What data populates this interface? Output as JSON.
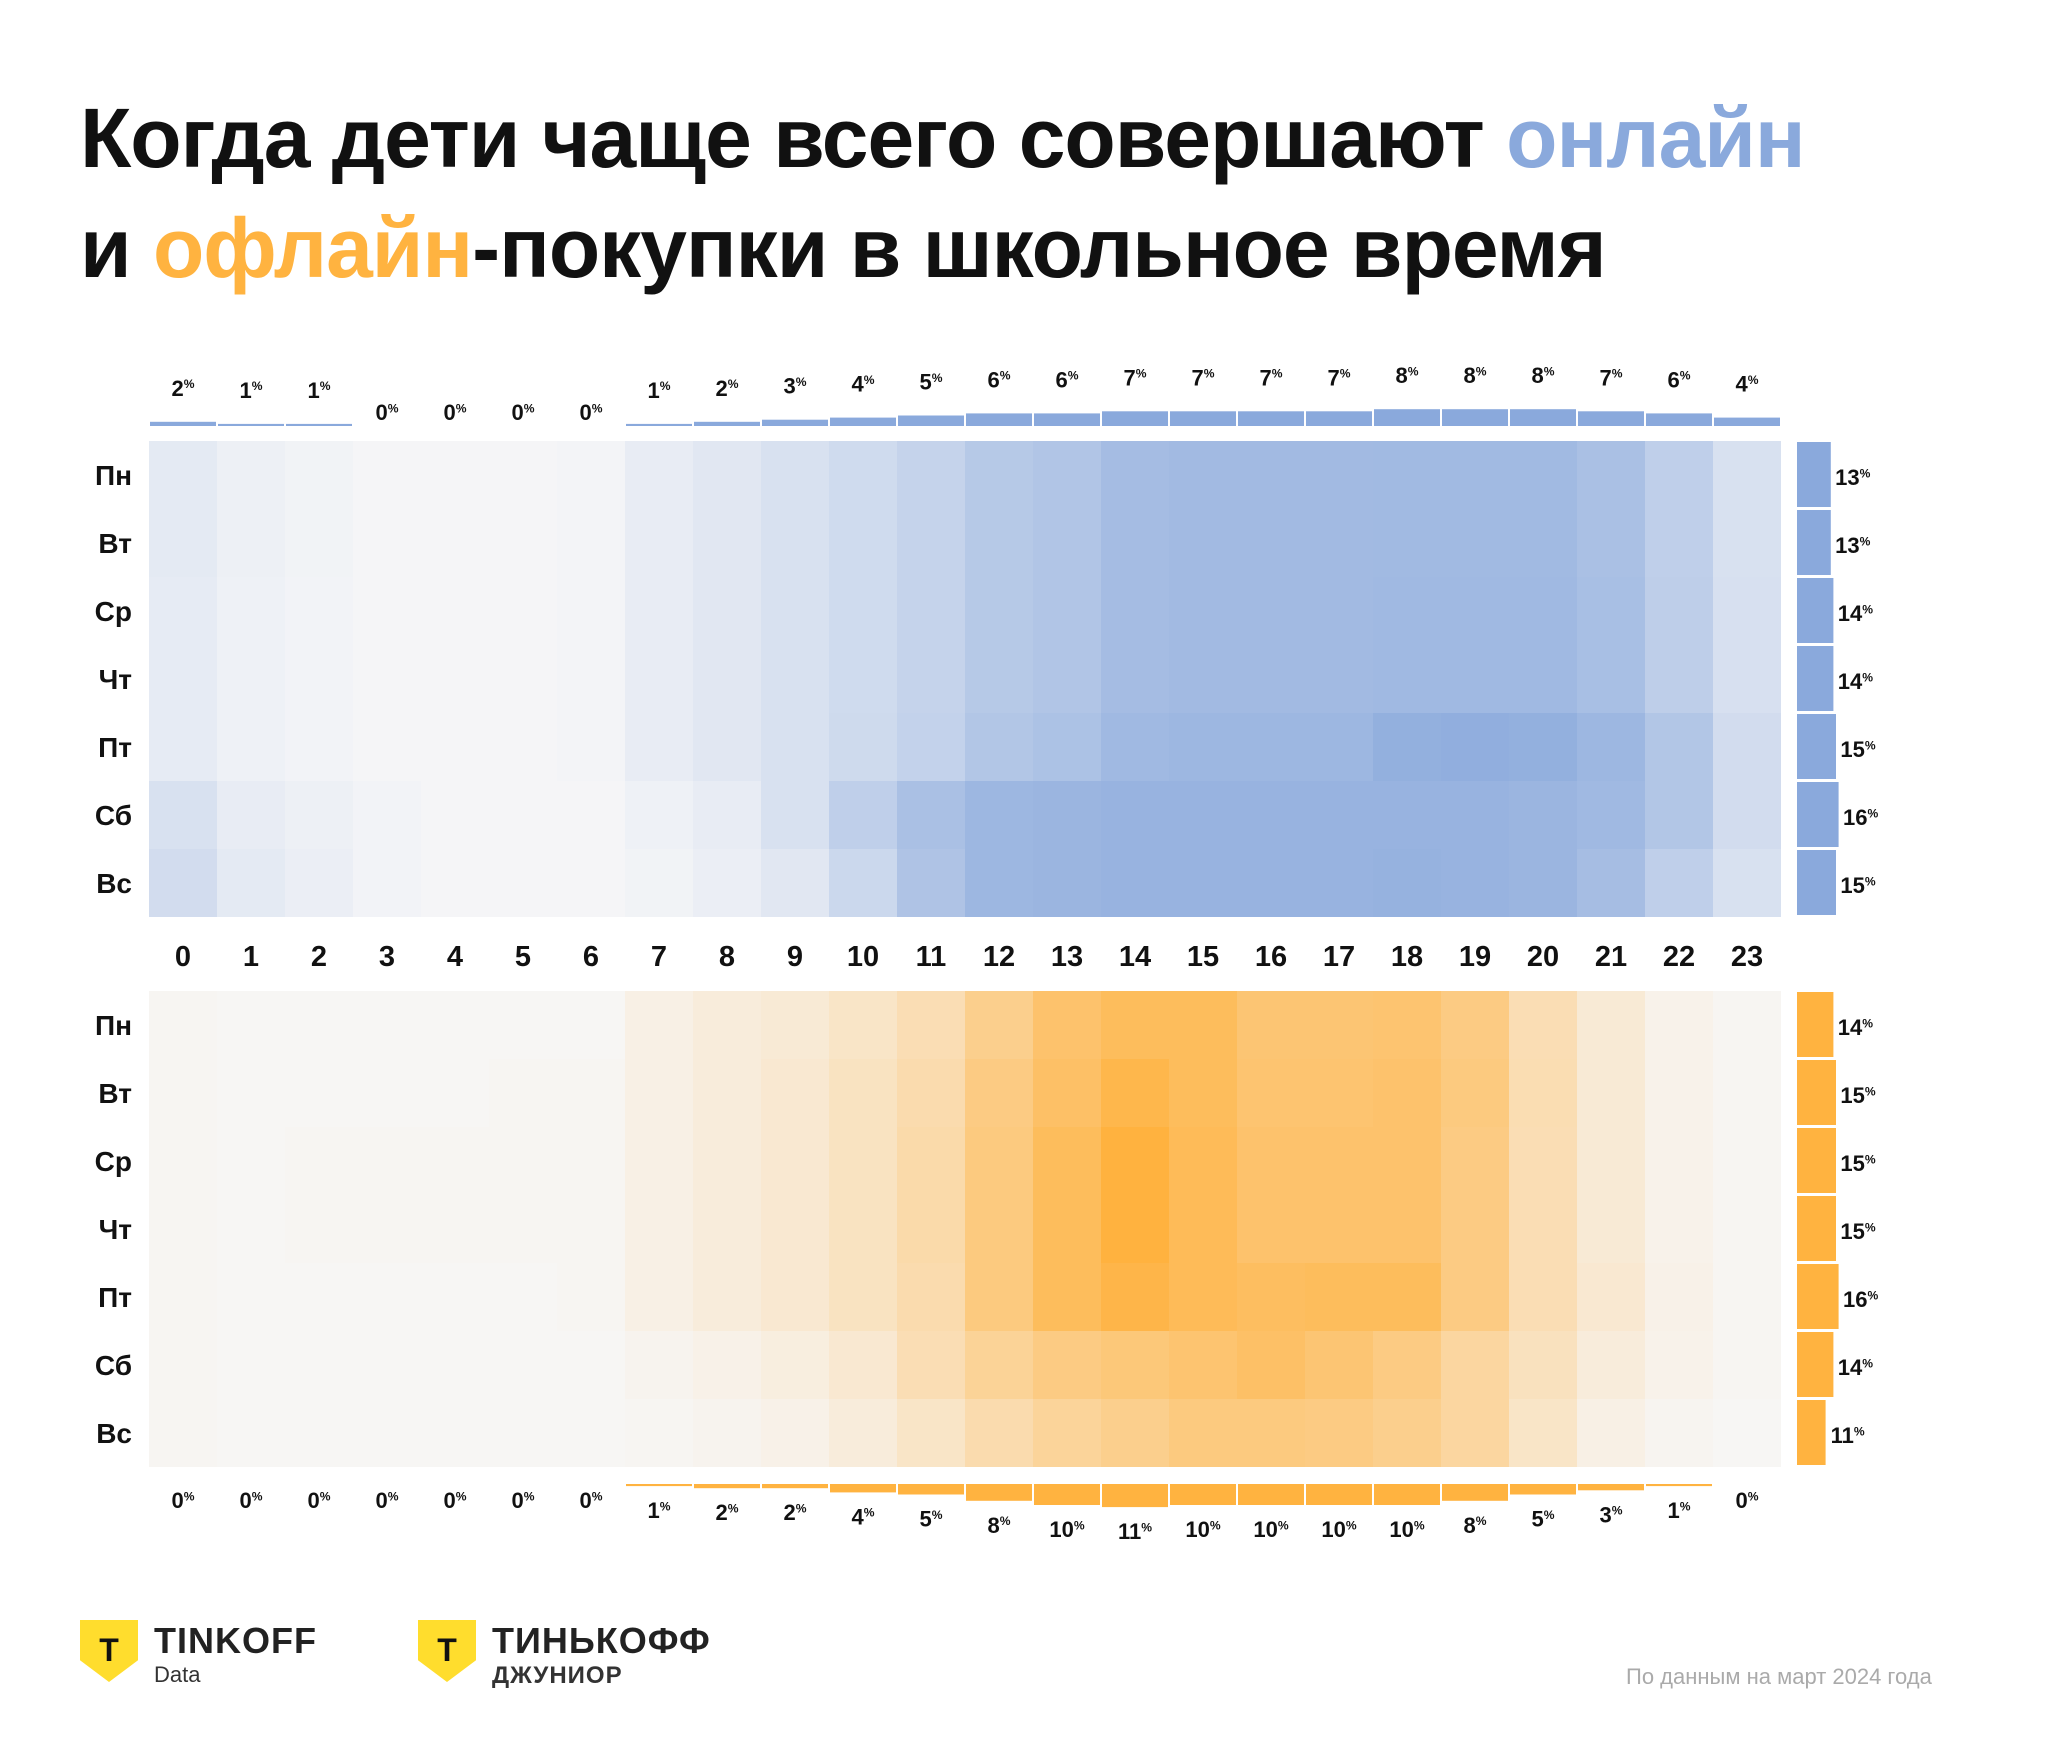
{
  "title": {
    "line1_a": "Когда дети чаще всего совершают ",
    "line1_b": "онлайн",
    "line2_a": "и ",
    "line2_b": "офлайн",
    "line2_c": "-покупки  в школьное время"
  },
  "colors": {
    "online": "#8AA9DC",
    "offline": "#FFB340"
  },
  "chart_data": [
    {
      "type": "heatmap",
      "name": "онлайн",
      "days": [
        "Пн",
        "Вт",
        "Ср",
        "Чт",
        "Пт",
        "Сб",
        "Вс"
      ],
      "hours": [
        "0",
        "1",
        "2",
        "3",
        "4",
        "5",
        "6",
        "7",
        "8",
        "9",
        "10",
        "11",
        "12",
        "13",
        "14",
        "15",
        "16",
        "17",
        "18",
        "19",
        "20",
        "21",
        "22",
        "23"
      ],
      "hour_totals": [
        2,
        1,
        1,
        0,
        0,
        0,
        0,
        1,
        2,
        3,
        4,
        5,
        6,
        6,
        7,
        7,
        7,
        7,
        8,
        8,
        8,
        7,
        6,
        4
      ],
      "day_totals": [
        13,
        13,
        14,
        14,
        15,
        16,
        15
      ],
      "intensity": [
        [
          0.15,
          0.08,
          0.05,
          0.02,
          0.02,
          0.02,
          0.03,
          0.12,
          0.18,
          0.25,
          0.32,
          0.4,
          0.52,
          0.56,
          0.66,
          0.68,
          0.68,
          0.68,
          0.69,
          0.69,
          0.69,
          0.62,
          0.45,
          0.25
        ],
        [
          0.15,
          0.08,
          0.05,
          0.02,
          0.02,
          0.02,
          0.03,
          0.12,
          0.18,
          0.25,
          0.32,
          0.4,
          0.52,
          0.56,
          0.66,
          0.68,
          0.68,
          0.68,
          0.69,
          0.69,
          0.69,
          0.62,
          0.45,
          0.25
        ],
        [
          0.14,
          0.07,
          0.04,
          0.02,
          0.02,
          0.02,
          0.03,
          0.12,
          0.18,
          0.25,
          0.32,
          0.4,
          0.52,
          0.56,
          0.66,
          0.68,
          0.68,
          0.68,
          0.7,
          0.7,
          0.7,
          0.63,
          0.46,
          0.26
        ],
        [
          0.14,
          0.07,
          0.04,
          0.02,
          0.02,
          0.02,
          0.03,
          0.12,
          0.18,
          0.25,
          0.32,
          0.4,
          0.52,
          0.56,
          0.66,
          0.68,
          0.68,
          0.68,
          0.7,
          0.7,
          0.7,
          0.63,
          0.46,
          0.26
        ],
        [
          0.14,
          0.07,
          0.04,
          0.02,
          0.02,
          0.02,
          0.03,
          0.12,
          0.18,
          0.25,
          0.33,
          0.42,
          0.55,
          0.6,
          0.7,
          0.72,
          0.72,
          0.72,
          0.8,
          0.82,
          0.8,
          0.72,
          0.55,
          0.3
        ],
        [
          0.25,
          0.12,
          0.08,
          0.04,
          0.02,
          0.02,
          0.02,
          0.07,
          0.12,
          0.25,
          0.45,
          0.62,
          0.72,
          0.74,
          0.76,
          0.76,
          0.76,
          0.76,
          0.76,
          0.76,
          0.74,
          0.7,
          0.55,
          0.3
        ],
        [
          0.3,
          0.15,
          0.1,
          0.04,
          0.02,
          0.02,
          0.02,
          0.05,
          0.1,
          0.18,
          0.35,
          0.58,
          0.72,
          0.74,
          0.76,
          0.76,
          0.76,
          0.76,
          0.78,
          0.76,
          0.74,
          0.65,
          0.45,
          0.25
        ]
      ]
    },
    {
      "type": "heatmap",
      "name": "офлайн",
      "days": [
        "Пн",
        "Вт",
        "Ср",
        "Чт",
        "Пт",
        "Сб",
        "Вс"
      ],
      "hours": [
        "0",
        "1",
        "2",
        "3",
        "4",
        "5",
        "6",
        "7",
        "8",
        "9",
        "10",
        "11",
        "12",
        "13",
        "14",
        "15",
        "16",
        "17",
        "18",
        "19",
        "20",
        "21",
        "22",
        "23"
      ],
      "hour_totals": [
        0,
        0,
        0,
        0,
        0,
        0,
        0,
        1,
        2,
        2,
        4,
        5,
        8,
        10,
        11,
        10,
        10,
        10,
        10,
        8,
        5,
        3,
        1,
        0
      ],
      "day_totals": [
        14,
        15,
        15,
        15,
        16,
        14,
        11
      ],
      "intensity": [
        [
          0.03,
          0.02,
          0.02,
          0.02,
          0.02,
          0.02,
          0.02,
          0.1,
          0.15,
          0.18,
          0.25,
          0.35,
          0.55,
          0.72,
          0.8,
          0.8,
          0.68,
          0.68,
          0.7,
          0.6,
          0.35,
          0.18,
          0.07,
          0.03
        ],
        [
          0.03,
          0.02,
          0.02,
          0.02,
          0.02,
          0.03,
          0.03,
          0.1,
          0.15,
          0.2,
          0.28,
          0.38,
          0.6,
          0.75,
          0.88,
          0.8,
          0.7,
          0.7,
          0.72,
          0.62,
          0.36,
          0.18,
          0.07,
          0.03
        ],
        [
          0.03,
          0.02,
          0.03,
          0.03,
          0.03,
          0.03,
          0.03,
          0.1,
          0.15,
          0.2,
          0.28,
          0.4,
          0.62,
          0.8,
          0.95,
          0.82,
          0.72,
          0.72,
          0.72,
          0.6,
          0.35,
          0.18,
          0.07,
          0.03
        ],
        [
          0.03,
          0.02,
          0.03,
          0.03,
          0.03,
          0.03,
          0.03,
          0.1,
          0.15,
          0.2,
          0.28,
          0.4,
          0.62,
          0.8,
          0.95,
          0.82,
          0.72,
          0.72,
          0.72,
          0.6,
          0.35,
          0.18,
          0.07,
          0.03
        ],
        [
          0.03,
          0.02,
          0.02,
          0.02,
          0.02,
          0.02,
          0.03,
          0.1,
          0.15,
          0.2,
          0.28,
          0.38,
          0.62,
          0.8,
          0.9,
          0.82,
          0.78,
          0.8,
          0.8,
          0.6,
          0.35,
          0.2,
          0.08,
          0.03
        ],
        [
          0.03,
          0.02,
          0.02,
          0.02,
          0.02,
          0.02,
          0.02,
          0.05,
          0.08,
          0.13,
          0.2,
          0.35,
          0.5,
          0.6,
          0.65,
          0.7,
          0.75,
          0.68,
          0.6,
          0.45,
          0.3,
          0.15,
          0.07,
          0.03
        ],
        [
          0.03,
          0.02,
          0.02,
          0.02,
          0.02,
          0.02,
          0.02,
          0.03,
          0.05,
          0.08,
          0.15,
          0.25,
          0.38,
          0.48,
          0.55,
          0.62,
          0.62,
          0.6,
          0.55,
          0.45,
          0.25,
          0.1,
          0.04,
          0.02
        ]
      ]
    }
  ],
  "logos": {
    "tinkoff_data": {
      "mark": "Т",
      "name": "TINKOFF",
      "sub": "Data"
    },
    "junior": {
      "mark": "Т",
      "name": "ТИНЬКОФФ",
      "sub": "ДЖУНИОР"
    }
  },
  "footnote": "По данным на март 2024 года"
}
